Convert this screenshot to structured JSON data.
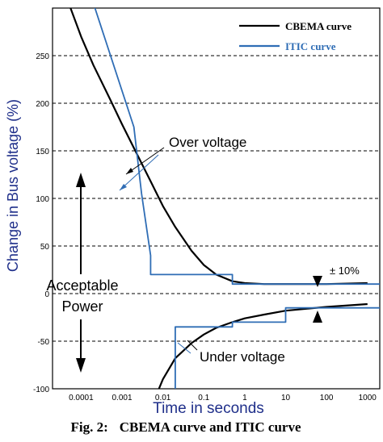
{
  "chart_data": {
    "type": "line",
    "title": "",
    "xlabel": "Time in seconds",
    "ylabel": "Change in Bus voltage (%)",
    "x_scale": "log",
    "xlim": [
      2e-05,
      2000
    ],
    "ylim": [
      -100,
      300
    ],
    "grid": "horizontal dashed",
    "x_ticks": [
      {
        "label": "0.0001",
        "value": 0.0001
      },
      {
        "label": "0.001",
        "value": 0.001
      },
      {
        "label": "0.01",
        "value": 0.01
      },
      {
        "label": "0.1",
        "value": 0.1
      },
      {
        "label": "1",
        "value": 1
      },
      {
        "label": "10",
        "value": 10
      },
      {
        "label": "100",
        "value": 100
      },
      {
        "label": "1000",
        "value": 1000
      }
    ],
    "y_ticks": [
      {
        "label": "-100",
        "value": -100
      },
      {
        "label": "-50",
        "value": -50
      },
      {
        "label": "0",
        "value": 0
      },
      {
        "label": "50",
        "value": 50
      },
      {
        "label": "100",
        "value": 100
      },
      {
        "label": "150",
        "value": 150
      },
      {
        "label": "200",
        "value": 200
      },
      {
        "label": "250",
        "value": 250
      }
    ],
    "legend_position": "top-right",
    "series": [
      {
        "name": "CBEMA curve",
        "color": "#000000",
        "segments": [
          {
            "x": [
              5e-05,
              0.0001,
              0.0002,
              0.0005,
              0.001,
              0.002,
              0.005,
              0.01,
              0.02,
              0.05,
              0.1,
              0.2,
              0.5,
              1,
              3,
              10,
              100,
              1000
            ],
            "y": [
              305,
              270,
              240,
              205,
              178,
              152,
              118,
              92,
              70,
              45,
              30,
              20,
              13,
              11,
              10,
              10,
              10,
              11
            ]
          },
          {
            "x": [
              0.008,
              0.01,
              0.02,
              0.05,
              0.1,
              0.2,
              0.5,
              1,
              3,
              10,
              100,
              1000
            ],
            "y": [
              -100,
              -90,
              -68,
              -52,
              -43,
              -36,
              -30,
              -26,
              -22,
              -18,
              -14,
              -11
            ]
          }
        ]
      },
      {
        "name": "ITIC curve",
        "color": "#2f6db5",
        "segments": [
          {
            "x": [
              0.0002,
              0.00195,
              0.003,
              0.005,
              0.005,
              0.5,
              0.5,
              2000
            ],
            "y": [
              305,
              175,
              105,
              40,
              20,
              20,
              10,
              10
            ]
          },
          {
            "x": [
              0.02,
              0.02,
              0.02,
              0.5,
              0.5,
              10,
              10,
              2000
            ],
            "y": [
              -100,
              -70,
              -35,
              -35,
              -30,
              -30,
              -15,
              -15
            ]
          }
        ]
      }
    ],
    "annotations": [
      {
        "text": "Over voltage"
      },
      {
        "text": "Acceptable"
      },
      {
        "text": "Power"
      },
      {
        "text": "Under voltage"
      },
      {
        "text": "± 10%"
      }
    ],
    "caption_label": "Fig. 2:",
    "caption_text": "CBEMA curve and ITIC curve"
  }
}
